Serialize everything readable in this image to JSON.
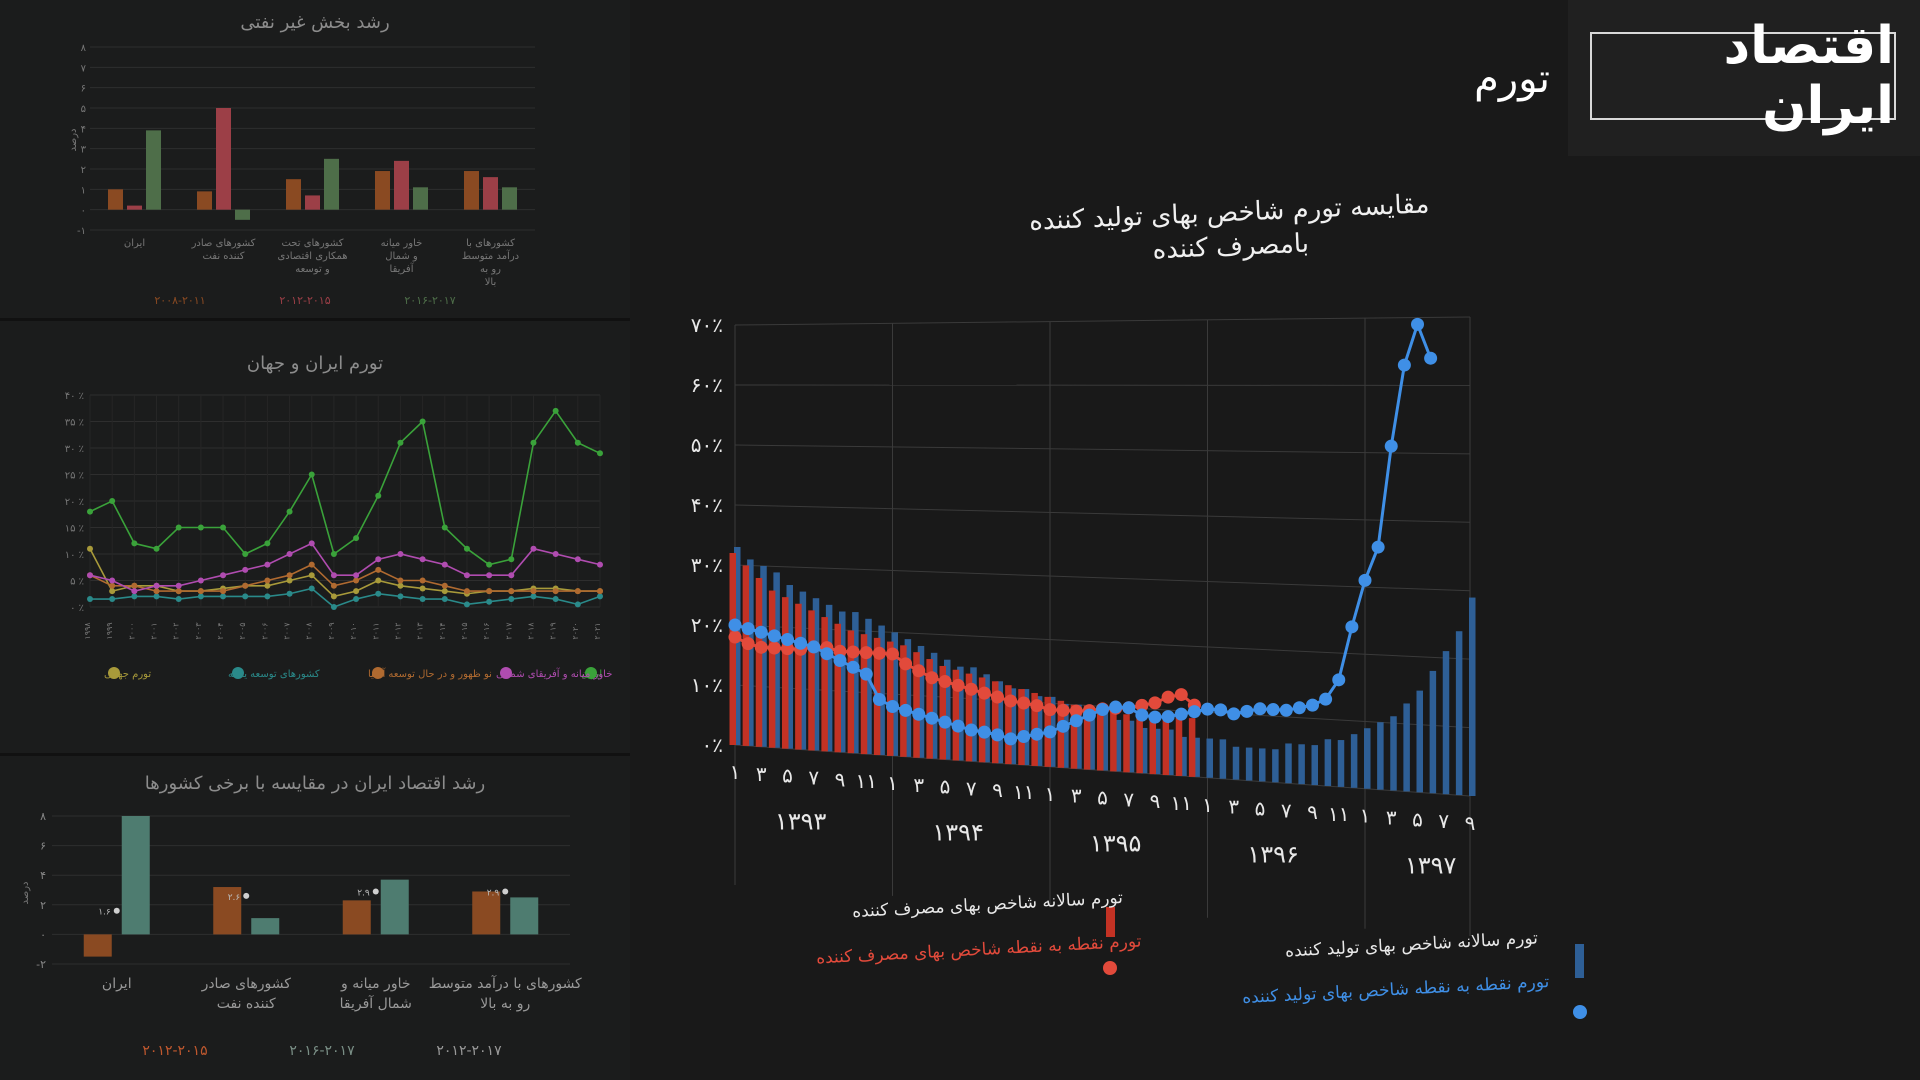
{
  "header": {
    "title": "اقتصاد ایران",
    "section": "تورم"
  },
  "main_chart": {
    "title_line1": "مقایسه تورم شاخص بهای تولید کننده",
    "title_line2": "بامصرف کننده",
    "title": "مقایسه تورم شاخص بهای تولید کننده بامصرف کننده",
    "legend": {
      "ppi_annual": "تورم سالانه شاخص بهای تولید کننده",
      "ppi_point": "تورم نقطه به نقطه شاخص بهای تولید کننده",
      "cpi_annual": "تورم سالانه شاخص بهای مصرف کننده",
      "cpi_point": "تورم نقطه به نقطه شاخص بهای مصرف کننده"
    }
  },
  "colors": {
    "ppi": "#3f8fe6",
    "ppi_bar": "#2e5f96",
    "cpi": "#e24a3b",
    "cpi_bar": "#c33224",
    "grid": "#3a3a3a",
    "label": "#e8e8e8"
  },
  "chart_data": [
    {
      "type": "bar",
      "title": "رشد بخش غیر نفتی",
      "ylabel": "درصد",
      "ylim": [
        -1,
        8
      ],
      "yticks": [
        "-۱",
        "۰",
        "۱",
        "۲",
        "۳",
        "۴",
        "۵",
        "۶",
        "۷",
        "۸"
      ],
      "categories": [
        "ایران",
        "کشورهای صادر کننده نفت",
        "کشورهای تحت همکاری اقتصادی و توسعه",
        "خاور میانه و شمال آفریقا",
        "کشورهای با درآمد متوسط رو به بالا"
      ],
      "series": [
        {
          "name": "۲۰۰۸-۲۰۱۱",
          "color": "#8a4a22",
          "values": [
            1.0,
            0.9,
            1.5,
            1.9,
            1.9
          ]
        },
        {
          "name": "۲۰۱۲-۲۰۱۵",
          "color": "#9c3f47",
          "values": [
            0.2,
            5.0,
            0.7,
            2.4,
            1.6
          ]
        },
        {
          "name": "۲۰۱۶-۲۰۱۷",
          "color": "#4e6e49",
          "values": [
            3.9,
            -0.5,
            2.5,
            1.1,
            1.1
          ]
        }
      ]
    },
    {
      "type": "line",
      "title": "تورم ایران و جهان",
      "ylim": [
        0,
        40
      ],
      "yticks": [
        "۰ ٪",
        "۵ ٪",
        "۱۰ ٪",
        "۱۵ ٪",
        "۲۰ ٪",
        "۲۵ ٪",
        "۳۰ ٪",
        "۳۵ ٪",
        "۴۰ ٪"
      ],
      "categories": [
        "۱۹۹۸",
        "۱۹۹۹",
        "۲۰۰۰",
        "۲۰۰۱",
        "۲۰۰۲",
        "۲۰۰۳",
        "۲۰۰۴",
        "۲۰۰۵",
        "۲۰۰۶",
        "۲۰۰۷",
        "۲۰۰۸",
        "۲۰۰۹",
        "۲۰۱۰",
        "۲۰۱۱",
        "۲۰۱۲",
        "۲۰۱۳",
        "۲۰۱۴",
        "۲۰۱۵",
        "۲۰۱۶",
        "۲۰۱۷",
        "۲۰۱۸",
        "۲۰۱۹",
        "۲۰۲۰",
        "۲۰۲۱"
      ],
      "series": [
        {
          "name": "ایران",
          "color": "#3aa23a",
          "values": [
            18,
            20,
            12,
            11,
            15,
            15,
            15,
            10,
            12,
            18,
            25,
            10,
            13,
            21,
            31,
            35,
            15,
            11,
            8,
            9,
            31,
            37,
            31,
            29
          ]
        },
        {
          "name": "خاور میانه و آفریقای شمالی",
          "color": "#b04cb0",
          "values": [
            6,
            5,
            3,
            4,
            4,
            5,
            6,
            7,
            8,
            10,
            12,
            6,
            6,
            9,
            10,
            9,
            8,
            6,
            6,
            6,
            11,
            10,
            9,
            8
          ]
        },
        {
          "name": "نو ظهور و در حال توسعه آسیا",
          "color": "#b06a30",
          "values": [
            6,
            4,
            4,
            3,
            3,
            3,
            3,
            4,
            5,
            6,
            8,
            4,
            5,
            7,
            5,
            5,
            4,
            3,
            3,
            3,
            3,
            3,
            3,
            3
          ]
        },
        {
          "name": "کشورهای توسعه یافته",
          "color": "#2a8a8a",
          "values": [
            1.5,
            1.5,
            2,
            2,
            1.5,
            2,
            2,
            2,
            2,
            2.5,
            3.5,
            0,
            1.5,
            2.5,
            2,
            1.5,
            1.5,
            0.5,
            1,
            1.5,
            2,
            1.5,
            0.5,
            2
          ]
        },
        {
          "name": "تورم جهانی",
          "color": "#a89a3a",
          "values": [
            11,
            3,
            4,
            4,
            3,
            3,
            3.5,
            4,
            4,
            5,
            6,
            2,
            3,
            5,
            4,
            3.5,
            3,
            2.5,
            3,
            3,
            3.5,
            3.5,
            3,
            3
          ]
        }
      ]
    },
    {
      "type": "bar",
      "title": "رشد اقتصاد ایران در مقایسه با برخی کشورها",
      "ylabel": "درصد",
      "ylim": [
        -2,
        8
      ],
      "yticks": [
        "-۲",
        "۰",
        "۲",
        "۴",
        "۶",
        "۸"
      ],
      "categories": [
        "ایران",
        "کشورهای صادر کننده نفت",
        "خاور میانه و شمال آفریقا",
        "کشورهای با درآمد متوسط رو به بالا"
      ],
      "series": [
        {
          "name": "۲۰۱۲-۲۰۱۵",
          "color": "#8a4a22",
          "values": [
            -1.5,
            3.2,
            2.3,
            2.9
          ]
        },
        {
          "name": "۲۰۱۶-۲۰۱۷",
          "color": "#4e7c70",
          "values": [
            8.0,
            1.1,
            3.7,
            2.5
          ]
        }
      ],
      "markers": [
        {
          "label": "۱.۶",
          "value": 1.6
        },
        {
          "label": "۲.۶",
          "value": 2.6
        },
        {
          "label": "۲.۹",
          "value": 2.9
        },
        {
          "label": "۲.۹",
          "value": 2.9
        }
      ],
      "legend": [
        "۲۰۱۲-۲۰۱۵",
        "۲۰۱۶-۲۰۱۷",
        "۲۰۱۲-۲۰۱۷"
      ]
    },
    {
      "type": "bar",
      "title": "مقایسه تورم شاخص بهای تولید کننده بامصرف کننده",
      "ylim": [
        0,
        70
      ],
      "yticks": [
        "۰٪",
        "۱۰٪",
        "۲۰٪",
        "۳۰٪",
        "۴۰٪",
        "۵۰٪",
        "۶۰٪",
        "۷۰٪"
      ],
      "years": [
        "۱۳۹۳",
        "۱۳۹۴",
        "۱۳۹۵",
        "۱۳۹۶",
        "۱۳۹۷"
      ],
      "month_labels": [
        "۱",
        "۳",
        "۵",
        "۷",
        "۹",
        "۱۱"
      ],
      "last_year_month_labels": [
        "۱",
        "۳",
        "۵",
        "۷",
        "۹"
      ],
      "x_months": 57,
      "series": [
        {
          "name": "تورم سالانه شاخص بهای تولید کننده",
          "kind": "bar",
          "values": [
            33,
            31,
            30,
            29,
            27,
            26,
            25,
            24,
            23,
            23,
            22,
            21,
            20,
            19,
            18,
            17,
            16,
            15,
            15,
            14,
            13,
            12,
            12,
            11,
            11,
            10,
            10,
            9,
            9,
            8,
            8,
            7,
            7,
            7,
            6,
            6,
            6,
            6,
            5,
            5,
            5,
            5,
            6,
            6,
            6,
            7,
            7,
            8,
            9,
            10,
            11,
            13,
            15,
            18,
            21,
            24,
            29
          ]
        },
        {
          "name": "تورم نقطه به نقطه شاخص بهای تولید کننده",
          "kind": "line",
          "values": [
            20,
            19.5,
            19,
            18.5,
            18,
            17.5,
            17,
            16,
            15,
            14,
            13,
            9,
            8,
            7.5,
            7,
            6.5,
            6,
            5.5,
            5,
            4.8,
            4.5,
            4,
            4.5,
            5,
            5.5,
            6.5,
            7.5,
            8.5,
            9.5,
            10,
            10,
            9,
            8.8,
            9,
            9.5,
            10,
            10.5,
            10.5,
            10,
            10.5,
            11,
            11,
            11,
            11.5,
            12,
            13,
            16,
            24,
            31,
            36,
            51,
            63,
            69,
            64
          ]
        },
        {
          "name": "تورم سالانه شاخص بهای مصرف کننده",
          "kind": "bar",
          "values": [
            32,
            30,
            28,
            26,
            25,
            24,
            23,
            22,
            21,
            20,
            19.5,
            19,
            18.5,
            18,
            17,
            16,
            15,
            14.5,
            14,
            13.5,
            13,
            12.5,
            12,
            11.5,
            11,
            10.5,
            10,
            10,
            9.5,
            9.5,
            9,
            9,
            9,
            9,
            9,
            9
          ]
        },
        {
          "name": "تورم نقطه به نقطه شاخص بهای مصرف کننده",
          "kind": "line",
          "values": [
            18,
            17,
            16.5,
            16.5,
            16.5,
            16.5,
            17,
            17,
            16.5,
            16.5,
            16.5,
            16.5,
            16.5,
            15,
            14,
            13,
            12.5,
            12,
            11.5,
            11,
            10.5,
            10,
            9.8,
            9.5,
            9,
            9,
            9,
            9.2,
            9.6,
            9.8,
            10,
            10.5,
            11,
            12,
            12.5,
            11
          ]
        }
      ]
    }
  ],
  "mini_labels": {
    "m1_legend": [
      "۲۰۰۸-۲۰۱۱",
      "۲۰۱۲-۲۰۱۵",
      "۲۰۱۶-۲۰۱۷"
    ],
    "m1_ylabel": "درصد",
    "m2_legend": [
      "ایران",
      "خاورمیانه و آفریقای شمالی",
      "نو ظهور و در حال توسعه آسیا",
      "کشورهای توسعه یافته",
      "تورم جهانی"
    ],
    "m3_ylabel": "درصد"
  }
}
